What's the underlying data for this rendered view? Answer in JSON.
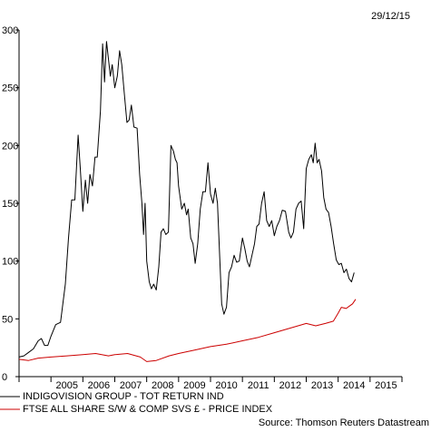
{
  "date_stamp": "29/12/15",
  "source": "Source: Thomson Reuters Datastream",
  "chart_data": {
    "type": "line",
    "title": "",
    "xlabel": "",
    "ylabel": "",
    "xlim": [
      2004.0,
      2016.0
    ],
    "ylim": [
      0,
      300
    ],
    "grid": false,
    "legend": "bottom",
    "x_tick_labels": [
      "2005",
      "2006",
      "2007",
      "2008",
      "2009",
      "2010",
      "2011",
      "2012",
      "2013",
      "2014",
      "2015"
    ],
    "y_tick_labels": [
      "0",
      "50",
      "100",
      "150",
      "200",
      "250",
      "300"
    ],
    "series": [
      {
        "name": "INDIGOVISION GROUP - TOT RETURN IND",
        "color": "#000000",
        "points": [
          [
            2004.0,
            17
          ],
          [
            2004.15,
            18
          ],
          [
            2004.3,
            21
          ],
          [
            2004.45,
            24
          ],
          [
            2004.6,
            31
          ],
          [
            2004.7,
            33
          ],
          [
            2004.8,
            27
          ],
          [
            2004.9,
            27
          ],
          [
            2005.0,
            35
          ],
          [
            2005.15,
            45
          ],
          [
            2005.3,
            47
          ],
          [
            2005.45,
            80
          ],
          [
            2005.55,
            120
          ],
          [
            2005.65,
            153
          ],
          [
            2005.75,
            153
          ],
          [
            2005.85,
            209
          ],
          [
            2005.92,
            180
          ],
          [
            2006.0,
            143
          ],
          [
            2006.08,
            170
          ],
          [
            2006.15,
            150
          ],
          [
            2006.22,
            175
          ],
          [
            2006.3,
            165
          ],
          [
            2006.38,
            190
          ],
          [
            2006.45,
            190
          ],
          [
            2006.55,
            230
          ],
          [
            2006.62,
            288
          ],
          [
            2006.68,
            255
          ],
          [
            2006.74,
            290
          ],
          [
            2006.8,
            275
          ],
          [
            2006.86,
            260
          ],
          [
            2006.92,
            270
          ],
          [
            2007.0,
            250
          ],
          [
            2007.08,
            260
          ],
          [
            2007.15,
            282
          ],
          [
            2007.22,
            270
          ],
          [
            2007.3,
            245
          ],
          [
            2007.38,
            220
          ],
          [
            2007.45,
            222
          ],
          [
            2007.52,
            235
          ],
          [
            2007.6,
            216
          ],
          [
            2007.7,
            215
          ],
          [
            2007.78,
            175
          ],
          [
            2007.85,
            150
          ],
          [
            2007.9,
            123
          ],
          [
            2007.95,
            150
          ],
          [
            2008.0,
            100
          ],
          [
            2008.08,
            82
          ],
          [
            2008.15,
            76
          ],
          [
            2008.22,
            80
          ],
          [
            2008.3,
            75
          ],
          [
            2008.38,
            95
          ],
          [
            2008.45,
            125
          ],
          [
            2008.52,
            128
          ],
          [
            2008.6,
            123
          ],
          [
            2008.68,
            125
          ],
          [
            2008.76,
            200
          ],
          [
            2008.84,
            195
          ],
          [
            2008.9,
            188
          ],
          [
            2008.95,
            185
          ],
          [
            2009.0,
            165
          ],
          [
            2009.1,
            145
          ],
          [
            2009.18,
            150
          ],
          [
            2009.25,
            140
          ],
          [
            2009.3,
            145
          ],
          [
            2009.38,
            120
          ],
          [
            2009.45,
            115
          ],
          [
            2009.52,
            98
          ],
          [
            2009.6,
            115
          ],
          [
            2009.68,
            145
          ],
          [
            2009.76,
            160
          ],
          [
            2009.84,
            160
          ],
          [
            2009.92,
            185
          ],
          [
            2010.0,
            158
          ],
          [
            2010.08,
            150
          ],
          [
            2010.15,
            163
          ],
          [
            2010.22,
            150
          ],
          [
            2010.28,
            110
          ],
          [
            2010.35,
            63
          ],
          [
            2010.42,
            54
          ],
          [
            2010.5,
            60
          ],
          [
            2010.58,
            90
          ],
          [
            2010.66,
            95
          ],
          [
            2010.74,
            105
          ],
          [
            2010.82,
            99
          ],
          [
            2010.9,
            100
          ],
          [
            2011.0,
            120
          ],
          [
            2011.08,
            110
          ],
          [
            2011.15,
            100
          ],
          [
            2011.22,
            95
          ],
          [
            2011.3,
            105
          ],
          [
            2011.38,
            115
          ],
          [
            2011.45,
            130
          ],
          [
            2011.52,
            132
          ],
          [
            2011.6,
            150
          ],
          [
            2011.68,
            160
          ],
          [
            2011.76,
            135
          ],
          [
            2011.84,
            130
          ],
          [
            2011.92,
            135
          ],
          [
            2012.0,
            122
          ],
          [
            2012.08,
            130
          ],
          [
            2012.16,
            135
          ],
          [
            2012.25,
            144
          ],
          [
            2012.35,
            143
          ],
          [
            2012.45,
            125
          ],
          [
            2012.52,
            120
          ],
          [
            2012.6,
            125
          ],
          [
            2012.68,
            145
          ],
          [
            2012.76,
            150
          ],
          [
            2012.84,
            152
          ],
          [
            2012.92,
            128
          ],
          [
            2013.0,
            180
          ],
          [
            2013.08,
            188
          ],
          [
            2013.16,
            192
          ],
          [
            2013.22,
            185
          ],
          [
            2013.28,
            202
          ],
          [
            2013.34,
            185
          ],
          [
            2013.4,
            188
          ],
          [
            2013.48,
            178
          ],
          [
            2013.55,
            155
          ],
          [
            2013.62,
            145
          ],
          [
            2013.7,
            142
          ],
          [
            2013.78,
            130
          ],
          [
            2013.86,
            115
          ],
          [
            2013.94,
            101
          ],
          [
            2014.02,
            97
          ],
          [
            2014.1,
            98
          ],
          [
            2014.18,
            90
          ],
          [
            2014.26,
            93
          ],
          [
            2014.34,
            85
          ],
          [
            2014.42,
            82
          ],
          [
            2014.5,
            90
          ]
        ]
      },
      {
        "name": "FTSE ALL SHARE S/W & COMP SVS £ - PRICE INDEX",
        "color": "#cc0000",
        "points": [
          [
            2004.0,
            15
          ],
          [
            2004.3,
            14
          ],
          [
            2004.6,
            16
          ],
          [
            2005.0,
            17
          ],
          [
            2005.5,
            18
          ],
          [
            2006.0,
            19
          ],
          [
            2006.4,
            20
          ],
          [
            2006.8,
            18
          ],
          [
            2007.0,
            19
          ],
          [
            2007.4,
            20
          ],
          [
            2007.8,
            17
          ],
          [
            2008.0,
            13
          ],
          [
            2008.3,
            14
          ],
          [
            2008.7,
            18
          ],
          [
            2009.0,
            20
          ],
          [
            2009.5,
            23
          ],
          [
            2010.0,
            26
          ],
          [
            2010.5,
            28
          ],
          [
            2011.0,
            31
          ],
          [
            2011.5,
            34
          ],
          [
            2012.0,
            38
          ],
          [
            2012.5,
            42
          ],
          [
            2013.0,
            46
          ],
          [
            2013.3,
            44
          ],
          [
            2013.6,
            46
          ],
          [
            2013.85,
            48
          ],
          [
            2014.0,
            55
          ],
          [
            2014.1,
            60
          ],
          [
            2014.25,
            59
          ],
          [
            2014.35,
            61
          ],
          [
            2014.45,
            63
          ],
          [
            2014.55,
            67
          ]
        ]
      }
    ]
  }
}
